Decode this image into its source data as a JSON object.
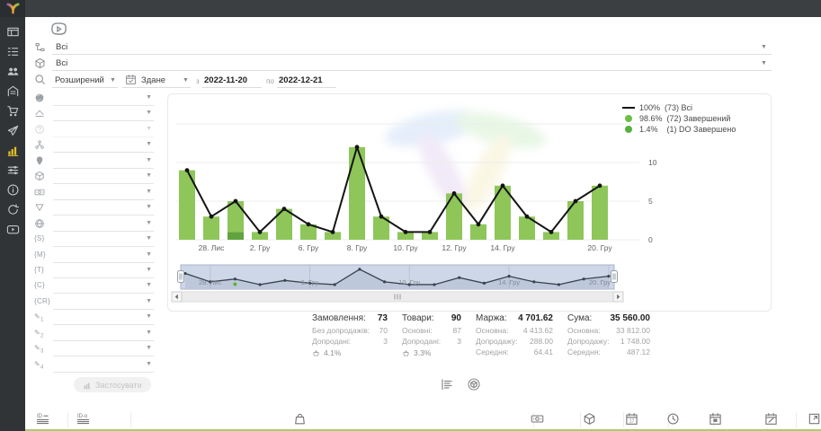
{
  "topbar": {
    "logo_icon": "logo-v"
  },
  "sidebar": {
    "items": [
      {
        "name": "dashboard",
        "icon": "dashboard",
        "active": false
      },
      {
        "name": "orders",
        "icon": "list",
        "active": false
      },
      {
        "name": "customers",
        "icon": "users",
        "active": false
      },
      {
        "name": "company",
        "icon": "building",
        "active": false
      },
      {
        "name": "cart",
        "icon": "cart",
        "active": false
      },
      {
        "name": "campaigns",
        "icon": "send",
        "active": false
      },
      {
        "name": "statistics",
        "icon": "chart-bars",
        "active": true
      },
      {
        "name": "settings",
        "icon": "sliders",
        "active": false
      },
      {
        "name": "info",
        "icon": "info",
        "active": false
      },
      {
        "name": "sync",
        "icon": "sync",
        "active": false
      },
      {
        "name": "video",
        "icon": "video",
        "active": false
      }
    ]
  },
  "filters_top": {
    "badge_icon": "play-badge",
    "rows": [
      {
        "icon": "flow",
        "value": "Всі"
      },
      {
        "icon": "box",
        "value": "Всі"
      }
    ],
    "search_row": {
      "icon": "search",
      "mode": "Розширений",
      "date_field": {
        "icon": "calendar-check",
        "value": "Здане"
      },
      "from_label": "з",
      "from_value": "2022-11-20",
      "to_label": "по",
      "to_value": "2022-12-21"
    }
  },
  "filter_panel": {
    "rows": [
      {
        "icon": "earth"
      },
      {
        "icon": "layers"
      },
      {
        "icon": "help",
        "disabled": true
      },
      {
        "icon": "hierarchy"
      },
      {
        "icon": "pin"
      },
      {
        "icon": "box"
      },
      {
        "icon": "banknote"
      },
      {
        "icon": "funnel"
      },
      {
        "icon": "globe"
      },
      {
        "text": "{S}"
      },
      {
        "text": "{M}"
      },
      {
        "text": "{T}"
      },
      {
        "text": "{C}"
      },
      {
        "text": "{CR}"
      },
      {
        "text": "✎",
        "sub": "1"
      },
      {
        "text": "✎",
        "sub": "2"
      },
      {
        "text": "✎",
        "sub": "3"
      },
      {
        "text": "✎",
        "sub": "4"
      }
    ],
    "apply_label": "Застосувати",
    "apply_icon": "chart-bars"
  },
  "chart_data": {
    "type": "bar+line",
    "categories": [
      "",
      "28. Лис",
      "",
      "2. Гру",
      "",
      "6. Гру",
      "",
      "8. Гру",
      "",
      "10. Гру",
      "",
      "12. Гру",
      "",
      "14. Гру",
      "",
      "",
      "",
      "20. Гру"
    ],
    "series": [
      {
        "name": "Всі",
        "type": "line",
        "color": "#141414",
        "values": [
          9,
          3,
          5,
          1,
          4,
          2,
          1,
          12,
          3,
          1,
          1,
          6,
          2,
          7,
          3,
          1,
          5,
          7
        ]
      },
      {
        "name": "Завершений",
        "type": "bar",
        "color": "#8ec65a",
        "values": [
          9,
          3,
          4,
          1,
          4,
          2,
          1,
          12,
          3,
          1,
          1,
          6,
          2,
          7,
          3,
          1,
          5,
          7
        ]
      },
      {
        "name": "DO Завершено",
        "type": "bar",
        "color": "#60a33f",
        "values": [
          0,
          0,
          1,
          0,
          0,
          0,
          0,
          0,
          0,
          0,
          0,
          0,
          0,
          0,
          0,
          0,
          0,
          0
        ]
      }
    ],
    "legend": [
      {
        "marker": "line",
        "color": "#141414",
        "label": "100%  (73) Всі"
      },
      {
        "marker": "dot",
        "color": "#6fbf44",
        "label": "98.6%  (72) Завершений"
      },
      {
        "marker": "dot",
        "color": "#54b33c",
        "label": "1.4%    (1) DO Завершено"
      }
    ],
    "ylim": [
      0,
      15
    ],
    "yticks": [
      0,
      5,
      10
    ],
    "grid": true,
    "legend_position": "top-right",
    "navigator_labels": [
      "28. Лис",
      "6. Гру",
      "10. Гру",
      "14. Гру",
      "20. Гру"
    ]
  },
  "stats": {
    "columns": [
      {
        "title": "Замовлення:",
        "value": "73",
        "rows": [
          {
            "label": "Без допродажів:",
            "value": "70"
          },
          {
            "label": "Допродані:",
            "value": "3"
          }
        ],
        "upsell": "4.1%",
        "upsell_icon": "basket"
      },
      {
        "title": "Товари:",
        "value": "90",
        "rows": [
          {
            "label": "Основні:",
            "value": "87"
          },
          {
            "label": "Допродані:",
            "value": "3"
          }
        ],
        "upsell": "3.3%",
        "upsell_icon": "basket"
      },
      {
        "title": "Маржа:",
        "value": "4 701.62",
        "rows": [
          {
            "label": "Основна:",
            "value": "4 413.62"
          },
          {
            "label": "Допродажу:",
            "value": "288.00"
          },
          {
            "label": "Середня:",
            "value": "64.41"
          }
        ]
      },
      {
        "title": "Сума:",
        "value": "35 560.00",
        "rows": [
          {
            "label": "Основна:",
            "value": "33 812.00"
          },
          {
            "label": "Допродажу:",
            "value": "1 748.00"
          },
          {
            "label": "Середня:",
            "value": "487.12"
          }
        ]
      }
    ]
  },
  "view_toggles": [
    {
      "name": "orders-view",
      "icon": "list-toggle"
    },
    {
      "name": "products-view",
      "icon": "box-circle"
    }
  ],
  "table_header": {
    "cells": [
      {
        "name": "col-id",
        "icon": "id-lines"
      },
      {
        "name": "col-id-o",
        "icon": "ido-lines"
      },
      {
        "name": "col-products",
        "icon": "bag"
      },
      {
        "name": "col-money",
        "icon": "banknote"
      },
      {
        "name": "col-package",
        "icon": "box"
      },
      {
        "name": "col-date",
        "icon": "calendar-17"
      },
      {
        "name": "col-time",
        "icon": "clock"
      },
      {
        "name": "col-delivery",
        "icon": "calendar-box"
      },
      {
        "name": "col-edit-date",
        "icon": "calendar-edit"
      },
      {
        "name": "col-open",
        "icon": "external"
      }
    ]
  }
}
